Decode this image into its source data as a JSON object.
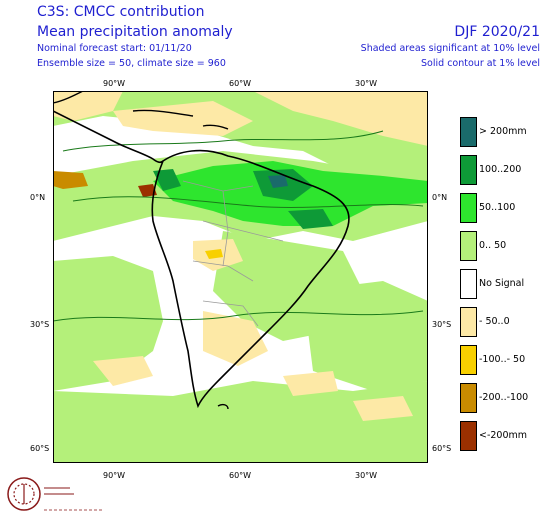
{
  "header": {
    "title1": "C3S: CMCC contribution",
    "title2": "Mean precipitation anomaly",
    "forecast_start": "Nominal forecast start: 01/11/20",
    "ensemble": "Ensemble size = 50, climate size = 960",
    "period": "DJF 2020/21",
    "note_shaded": "Shaded areas significant at 10% level",
    "note_contour": "Solid contour at 1% level"
  },
  "axes": {
    "top": [
      "90°W",
      "60°W",
      "30°W"
    ],
    "bottom": [
      "90°W",
      "60°W",
      "30°W"
    ],
    "left": [
      "0°N",
      "30°S",
      "60°S"
    ],
    "right": [
      "0°N",
      "30°S",
      "60°S"
    ]
  },
  "legend": [
    {
      "label": "> 200mm",
      "color": "#1a6b6b"
    },
    {
      "label": "100..200",
      "color": "#0e9a37"
    },
    {
      "label": "50..100",
      "color": "#2ee52e"
    },
    {
      "label": "0.. 50",
      "color": "#b4f07a"
    },
    {
      "label": "No Signal",
      "color": "#ffffff"
    },
    {
      "label": "- 50..0",
      "color": "#fde9a6"
    },
    {
      "label": "-100..- 50",
      "color": "#f8d000"
    },
    {
      "label": "-200..-100",
      "color": "#c98b00"
    },
    {
      "label": "<-200mm",
      "color": "#9b3000"
    }
  ],
  "logo": {
    "name": "Climate Change Service"
  }
}
